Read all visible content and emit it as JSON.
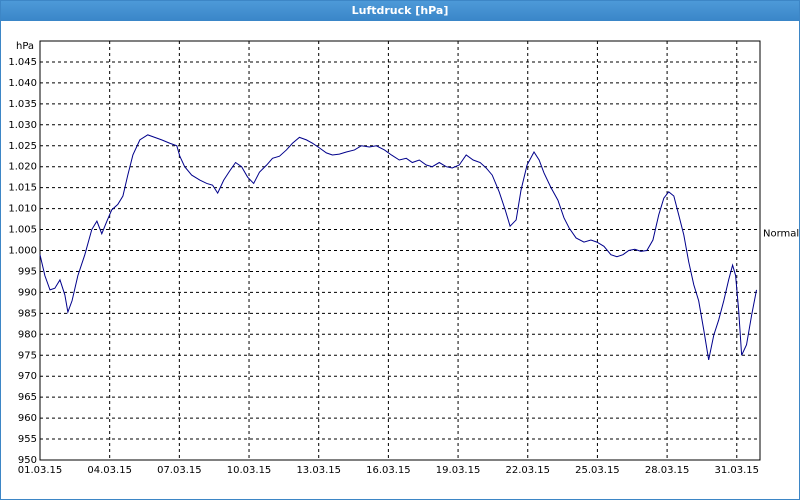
{
  "window_title": "Luftdruck [hPa]",
  "chart_data": {
    "type": "line",
    "y_label": "hPa",
    "xlim": [
      0,
      31
    ],
    "xticks": [
      {
        "value": 0,
        "label": "01.03.15"
      },
      {
        "value": 3,
        "label": "04.03.15"
      },
      {
        "value": 6,
        "label": "07.03.15"
      },
      {
        "value": 9,
        "label": "10.03.15"
      },
      {
        "value": 12,
        "label": "13.03.15"
      },
      {
        "value": 15,
        "label": "16.03.15"
      },
      {
        "value": 18,
        "label": "19.03.15"
      },
      {
        "value": 21,
        "label": "22.03.15"
      },
      {
        "value": 24,
        "label": "25.03.15"
      },
      {
        "value": 27,
        "label": "28.03.15"
      },
      {
        "value": 30,
        "label": "31.03.15"
      }
    ],
    "ylim": [
      950,
      1050
    ],
    "yticks": [
      950,
      955,
      960,
      965,
      970,
      975,
      980,
      985,
      990,
      995,
      {
        "value": 1000,
        "label": "1.000"
      },
      {
        "value": 1005,
        "label": "1.005"
      },
      {
        "value": 1010,
        "label": "1.010"
      },
      {
        "value": 1015,
        "label": "1.015"
      },
      {
        "value": 1020,
        "label": "1.020"
      },
      {
        "value": 1025,
        "label": "1.025"
      },
      {
        "value": 1030,
        "label": "1.030"
      },
      {
        "value": 1035,
        "label": "1.035"
      },
      {
        "value": 1040,
        "label": "1.040"
      },
      {
        "value": 1045,
        "label": "1.045"
      }
    ],
    "grid": true,
    "annotations": [
      {
        "text": "Normal",
        "y": 1004
      }
    ],
    "x": [
      0,
      0.21,
      0.43,
      0.64,
      0.86,
      1.07,
      1.2,
      1.38,
      1.63,
      1.93,
      2.23,
      2.45,
      2.66,
      2.88,
      3.09,
      3.35,
      3.57,
      3.78,
      4.0,
      4.3,
      4.64,
      4.94,
      5.24,
      5.59,
      5.89,
      6.02,
      6.23,
      6.53,
      6.88,
      7.18,
      7.43,
      7.65,
      7.91,
      8.17,
      8.42,
      8.68,
      8.94,
      9.2,
      9.45,
      9.76,
      10.01,
      10.31,
      10.61,
      10.87,
      11.17,
      11.47,
      11.73,
      12.03,
      12.33,
      12.59,
      12.89,
      13.19,
      13.54,
      13.84,
      14.18,
      14.48,
      14.83,
      15.13,
      15.47,
      15.77,
      16.03,
      16.33,
      16.63,
      16.89,
      17.19,
      17.49,
      17.75,
      18.05,
      18.35,
      18.65,
      18.95,
      19.21,
      19.47,
      19.77,
      20.03,
      20.24,
      20.5,
      20.71,
      20.97,
      21.27,
      21.49,
      21.7,
      22.0,
      22.3,
      22.56,
      22.78,
      23.08,
      23.42,
      23.72,
      23.98,
      24.28,
      24.58,
      24.84,
      25.1,
      25.35,
      25.61,
      25.87,
      26.13,
      26.39,
      26.64,
      26.86,
      27.07,
      27.29,
      27.5,
      27.72,
      27.93,
      28.15,
      28.36,
      28.58,
      28.79,
      29.01,
      29.22,
      29.44,
      29.65,
      29.82,
      29.95,
      30.08,
      30.21,
      30.42,
      30.64,
      30.85
    ],
    "series": [
      {
        "color": "#00008b",
        "values": [
          999,
          994,
          990.6,
          991,
          993,
          989.4,
          985.3,
          988,
          994,
          999,
          1005,
          1007,
          1004,
          1007,
          1009.7,
          1011,
          1013,
          1018,
          1022.8,
          1026.4,
          1027.6,
          1027,
          1026.4,
          1025.6,
          1025,
          1022.5,
          1020,
          1018,
          1016.8,
          1016,
          1015.6,
          1013.7,
          1016.8,
          1019,
          1021,
          1020,
          1017.5,
          1016,
          1018.7,
          1020.4,
          1022,
          1022.5,
          1024,
          1025.6,
          1027,
          1026.4,
          1025.6,
          1024.5,
          1023.3,
          1022.8,
          1023,
          1023.5,
          1024,
          1025,
          1024.7,
          1025,
          1024,
          1022.8,
          1021.6,
          1022,
          1021,
          1021.6,
          1020.4,
          1020,
          1021,
          1020,
          1019.7,
          1020.4,
          1022.8,
          1021.6,
          1021,
          1019.7,
          1018,
          1014,
          1009.7,
          1005.8,
          1007.3,
          1014.4,
          1020.4,
          1023.5,
          1021.6,
          1018.5,
          1015,
          1012,
          1007.8,
          1005.4,
          1003,
          1002,
          1002.5,
          1002,
          1001,
          999,
          998.5,
          999,
          1000,
          1000.3,
          999.8,
          1000,
          1002.5,
          1008.5,
          1012.5,
          1014,
          1013,
          1008.5,
          1003.7,
          997.3,
          991.8,
          988,
          981,
          973.9,
          979.8,
          983.4,
          988,
          993,
          996.5,
          994,
          985.8,
          975,
          977.5,
          984.6,
          990.6
        ]
      }
    ]
  }
}
